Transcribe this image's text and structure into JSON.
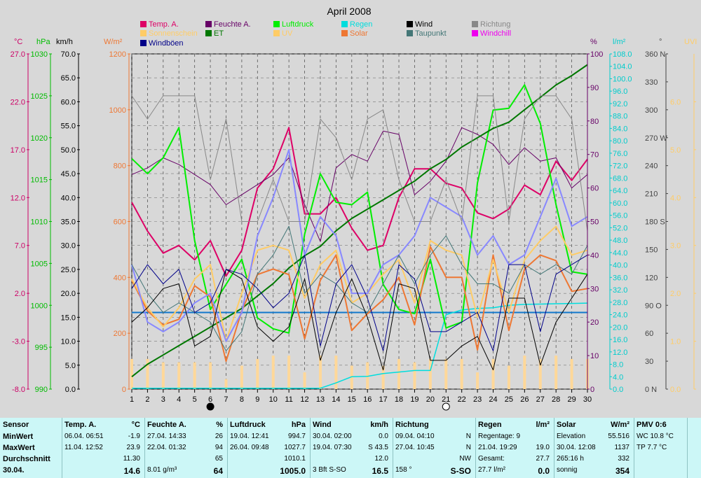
{
  "chart_data": {
    "type": "line",
    "title": "April 2008",
    "x": [
      1,
      2,
      3,
      4,
      5,
      6,
      7,
      8,
      9,
      10,
      11,
      12,
      13,
      14,
      15,
      16,
      17,
      18,
      19,
      20,
      21,
      22,
      23,
      24,
      25,
      26,
      27,
      28,
      29,
      30
    ],
    "xlim": [
      1,
      30
    ],
    "axes": {
      "temp": {
        "unit": "°C",
        "color": "#cc0066",
        "min": -8,
        "max": 27,
        "ticks": [
          "27.0",
          "22.0",
          "17.0",
          "12.0",
          "7.0",
          "2.0",
          "-3.0",
          "-8.0"
        ]
      },
      "press": {
        "unit": "hPa",
        "color": "#00bb00",
        "min": 990,
        "max": 1030,
        "ticks": [
          "1030",
          "1025",
          "1020",
          "1015",
          "1010",
          "1005",
          "1000",
          "995",
          "990"
        ]
      },
      "wind": {
        "unit": "km/h",
        "color": "#000000",
        "min": 0,
        "max": 70,
        "ticks": [
          "70.0",
          "65.0",
          "60.0",
          "55.0",
          "50.0",
          "45.0",
          "40.0",
          "35.0",
          "30.0",
          "25.0",
          "20.0",
          "15.0",
          "10.0",
          "5.0",
          "0.0"
        ]
      },
      "solar": {
        "unit": "W/m²",
        "color": "#ee7733",
        "min": 0,
        "max": 1200,
        "ticks": [
          "1200",
          "1000",
          "800",
          "600",
          "400",
          "200",
          "0"
        ]
      },
      "hum": {
        "unit": "%",
        "color": "#660066",
        "min": 0,
        "max": 100,
        "ticks": [
          "100",
          "90",
          "80",
          "70",
          "60",
          "50",
          "40",
          "30",
          "20",
          "10",
          "0"
        ]
      },
      "rain": {
        "unit": "l/m²",
        "color": "#00cccc",
        "min": 0,
        "max": 108,
        "ticks": [
          "108.0",
          "104.0",
          "100.0",
          "96.0",
          "92.0",
          "88.0",
          "84.0",
          "80.0",
          "76.0",
          "72.0",
          "68.0",
          "64.0",
          "60.0",
          "56.0",
          "52.0",
          "48.0",
          "44.0",
          "40.0",
          "36.0",
          "32.0",
          "28.0",
          "24.0",
          "20.0",
          "16.0",
          "12.0",
          "8.0",
          "4.0",
          "0.0"
        ]
      },
      "dir": {
        "unit": "°",
        "color": "#444444",
        "min": 0,
        "max": 360,
        "ticks": [
          "360 N",
          "330",
          "300",
          "270 W",
          "240",
          "210",
          "180 S",
          "150",
          "120",
          "90  O",
          "60",
          "30",
          "0   N"
        ]
      },
      "uv": {
        "unit": "UVI",
        "color": "#ffcc66",
        "min": 0,
        "max": 7,
        "ticks": [
          "6.0",
          "5.0",
          "4.0",
          "3.0",
          "2.0",
          "1.0",
          "0.0"
        ]
      }
    },
    "legend": [
      {
        "name": "Temp. A.",
        "color": "#dd0066"
      },
      {
        "name": "Feuchte A.",
        "color": "#660066"
      },
      {
        "name": "Luftdruck",
        "color": "#00ee00"
      },
      {
        "name": "Regen",
        "color": "#00dddd"
      },
      {
        "name": "Wind",
        "color": "#000000"
      },
      {
        "name": "Richtung",
        "color": "#888888"
      },
      {
        "name": "Sonnenschein",
        "color": "#ffcc66"
      },
      {
        "name": "ET",
        "color": "#007700"
      },
      {
        "name": "UV",
        "color": "#ffcc66"
      },
      {
        "name": "Solar",
        "color": "#ee7733"
      },
      {
        "name": "Taupunkt",
        "color": "#447777"
      },
      {
        "name": "Windchill",
        "color": "#ee00ee"
      },
      {
        "name": "Windböen",
        "color": "#000088"
      }
    ],
    "moon_markers": [
      {
        "day": 6,
        "phase": "new"
      },
      {
        "day": 21,
        "phase": "full"
      }
    ],
    "series": [
      {
        "key": "temp",
        "axis": "temp",
        "color": "#dd0066",
        "width": 2,
        "values": [
          11.5,
          8.5,
          6.2,
          7.0,
          5.5,
          7.5,
          3.8,
          6.5,
          13.0,
          15.0,
          19.3,
          10.3,
          10.3,
          12.0,
          8.8,
          6.5,
          7.0,
          12.0,
          15.0,
          15.0,
          13.5,
          13.0,
          10.4,
          9.8,
          10.8,
          13.3,
          12.3,
          15.8,
          13.8,
          16.0
        ]
      },
      {
        "key": "hum",
        "axis": "hum",
        "color": "#660066",
        "width": 1,
        "values": [
          64,
          66,
          69,
          67,
          64,
          61,
          55,
          58,
          61,
          64,
          69,
          55,
          44,
          66,
          70,
          68,
          77,
          76,
          58,
          62,
          68,
          78,
          76,
          73,
          67,
          72,
          68,
          69,
          60,
          64
        ]
      },
      {
        "key": "press",
        "axis": "press",
        "color": "#00ee00",
        "width": 2,
        "values": [
          1017.5,
          1015.7,
          1017.6,
          1021.2,
          1007.7,
          999.5,
          1002.5,
          1005.5,
          998.5,
          997.2,
          996.7,
          1008.5,
          1015.7,
          1012.3,
          1012.0,
          1013.5,
          1002.5,
          999.5,
          999.0,
          1005.5,
          997.3,
          998.0,
          1014.6,
          1023.3,
          1023.5,
          1026.3,
          1021.7,
          1012.0,
          1004.0,
          1003.7
        ]
      },
      {
        "key": "et",
        "axis": "rain",
        "color": "#007700",
        "width": 2,
        "values": [
          4,
          8,
          11,
          14,
          17,
          20,
          23,
          26,
          30,
          34,
          39,
          43,
          46,
          51,
          55,
          58,
          61,
          64,
          67,
          71,
          74,
          78,
          81,
          84,
          86,
          90,
          94,
          98,
          101,
          104.5
        ]
      },
      {
        "key": "solar",
        "axis": "solar",
        "color": "#ee7733",
        "width": 2,
        "values": [
          390,
          280,
          230,
          250,
          370,
          330,
          100,
          280,
          410,
          430,
          410,
          180,
          390,
          480,
          210,
          270,
          320,
          400,
          230,
          510,
          400,
          400,
          140,
          480,
          210,
          430,
          480,
          460,
          350,
          360
        ]
      },
      {
        "key": "uv",
        "axis": "uv",
        "color": "#ffcc66",
        "width": 2,
        "values": [
          2.3,
          1.7,
          1.3,
          1.7,
          2.3,
          2.6,
          1.0,
          2.0,
          2.9,
          3.0,
          2.9,
          1.9,
          2.6,
          2.9,
          1.8,
          2.0,
          2.4,
          2.7,
          1.8,
          3.1,
          2.9,
          2.8,
          1.5,
          2.7,
          1.6,
          2.7,
          3.1,
          3.4,
          2.8,
          2.9
        ]
      },
      {
        "key": "chill",
        "axis": "temp",
        "color": "#8888ff",
        "width": 2,
        "values": [
          5,
          -1,
          -2,
          -1,
          1,
          2,
          -3,
          0,
          8,
          12,
          17,
          6,
          10,
          8,
          2,
          2,
          5,
          6,
          8,
          12,
          11,
          10,
          6,
          8,
          5,
          6,
          10,
          14,
          9,
          10
        ]
      },
      {
        "key": "dew",
        "axis": "temp",
        "color": "#447777",
        "width": 1,
        "values": [
          5,
          2,
          0,
          1,
          0,
          -1,
          -4,
          -2,
          4,
          6,
          9,
          2,
          4,
          3,
          1,
          0,
          3,
          6,
          3,
          6,
          8,
          5,
          3,
          3,
          2,
          5,
          4,
          5,
          4,
          7
        ]
      },
      {
        "key": "dir",
        "axis": "dir",
        "color": "#888888",
        "width": 1,
        "values": [
          315,
          290,
          315,
          315,
          315,
          225,
          290,
          180,
          180,
          225,
          180,
          180,
          290,
          270,
          225,
          290,
          300,
          225,
          180,
          180,
          225,
          180,
          315,
          315,
          180,
          290,
          315,
          315,
          290,
          170
        ]
      },
      {
        "key": "wind",
        "axis": "wind",
        "color": "#000000",
        "width": 1,
        "values": [
          14,
          17,
          21,
          22,
          9,
          11,
          25,
          23,
          13,
          10,
          13,
          23,
          6,
          16,
          23,
          15,
          4,
          22,
          21,
          6,
          6,
          9,
          11,
          4,
          19,
          19,
          5,
          14,
          19,
          24
        ]
      },
      {
        "key": "gust",
        "axis": "wind",
        "color": "#000088",
        "width": 1,
        "values": [
          21,
          26,
          22,
          25,
          16,
          18,
          25,
          24,
          21,
          17,
          20,
          28,
          9,
          22,
          26,
          19,
          8,
          26,
          23,
          12,
          12,
          14,
          16,
          8,
          26,
          26,
          12,
          24,
          26,
          28
        ]
      },
      {
        "key": "sun_bars",
        "axis": "hum",
        "color": "#ffd899",
        "width": 4,
        "values": [
          9,
          9,
          8,
          8,
          8,
          8,
          3,
          7,
          9,
          10,
          10,
          5,
          10,
          10,
          7,
          8,
          7,
          9,
          8,
          9,
          9,
          9,
          5,
          9,
          7,
          10,
          9,
          10,
          9,
          9
        ]
      }
    ],
    "reference_lines": [
      {
        "axis": "wind",
        "value": 16,
        "color": "#1177cc"
      }
    ],
    "rain_cumulative": {
      "axis": "rain",
      "color": "#00dddd",
      "values": [
        0.3,
        0.3,
        0.3,
        0.3,
        0.3,
        0.3,
        0.3,
        0.3,
        0.3,
        0.3,
        0.3,
        0.3,
        0.3,
        2,
        4.0,
        4.1,
        5.0,
        5.5,
        6,
        6,
        24,
        25.5,
        26,
        26.2,
        27,
        27.3,
        27.4,
        27.5,
        27.6,
        27.7
      ]
    }
  },
  "table": [
    {
      "title": "Sensor",
      "unit": "",
      "rows": [
        [
          "MinWert",
          ""
        ],
        [
          "MaxWert",
          ""
        ],
        [
          "Durchschnitt",
          ""
        ],
        [
          "30.04.",
          ""
        ]
      ]
    },
    {
      "title": "Temp. A.",
      "unit": "°C",
      "rows": [
        [
          "06.04.  06:51",
          "-1.9"
        ],
        [
          "11.04.  12:52",
          "23.9"
        ],
        [
          "",
          "11.30"
        ],
        [
          "",
          "14.6"
        ]
      ]
    },
    {
      "title": "Feuchte A.",
      "unit": "%",
      "rows": [
        [
          "27.04.  14:33",
          "26"
        ],
        [
          "22.04.  01:32",
          "94"
        ],
        [
          "",
          "65"
        ],
        [
          "8.01 g/m³",
          "64"
        ]
      ]
    },
    {
      "title": "Luftdruck",
      "unit": "hPa",
      "rows": [
        [
          "19.04.  12:41",
          "994.7"
        ],
        [
          "26.04.  09:48",
          "1027.7"
        ],
        [
          "",
          "1010.1"
        ],
        [
          "",
          "1005.0"
        ]
      ]
    },
    {
      "title": "Wind",
      "unit": "km/h",
      "rows": [
        [
          "30.04.  02:00",
          "0.0"
        ],
        [
          "19.04.  07:30",
          "S  43.5"
        ],
        [
          "",
          "12.0"
        ],
        [
          "3 Bft S-SO",
          "16.5"
        ]
      ]
    },
    {
      "title": "Richtung",
      "unit": "",
      "rows": [
        [
          "09.04.  04:10",
          "N"
        ],
        [
          "27.04.  10:45",
          "N"
        ],
        [
          "",
          "NW"
        ],
        [
          "158 °",
          "S-SO"
        ]
      ]
    },
    {
      "title": "Regen",
      "unit": "l/m²",
      "rows": [
        [
          "Regentage: 9",
          ""
        ],
        [
          "21.04.  19:29",
          "19.0"
        ],
        [
          "Gesamt:",
          "27.7"
        ],
        [
          "27.7 l/m²",
          "0.0"
        ]
      ]
    },
    {
      "title": "Solar",
      "unit": "W/m²",
      "rows": [
        [
          "Elevation",
          "55.516"
        ],
        [
          "30.04.  12:08",
          "1137"
        ],
        [
          "265:16 h",
          "332"
        ],
        [
          "sonnig",
          "354"
        ]
      ]
    },
    {
      "title": "PMV 0:6",
      "unit": "",
      "rows": [
        [
          "WC 10.8 °C",
          ""
        ],
        [
          "TP 7.7 °C",
          ""
        ],
        [
          "",
          ""
        ],
        [
          "",
          ""
        ]
      ]
    }
  ]
}
